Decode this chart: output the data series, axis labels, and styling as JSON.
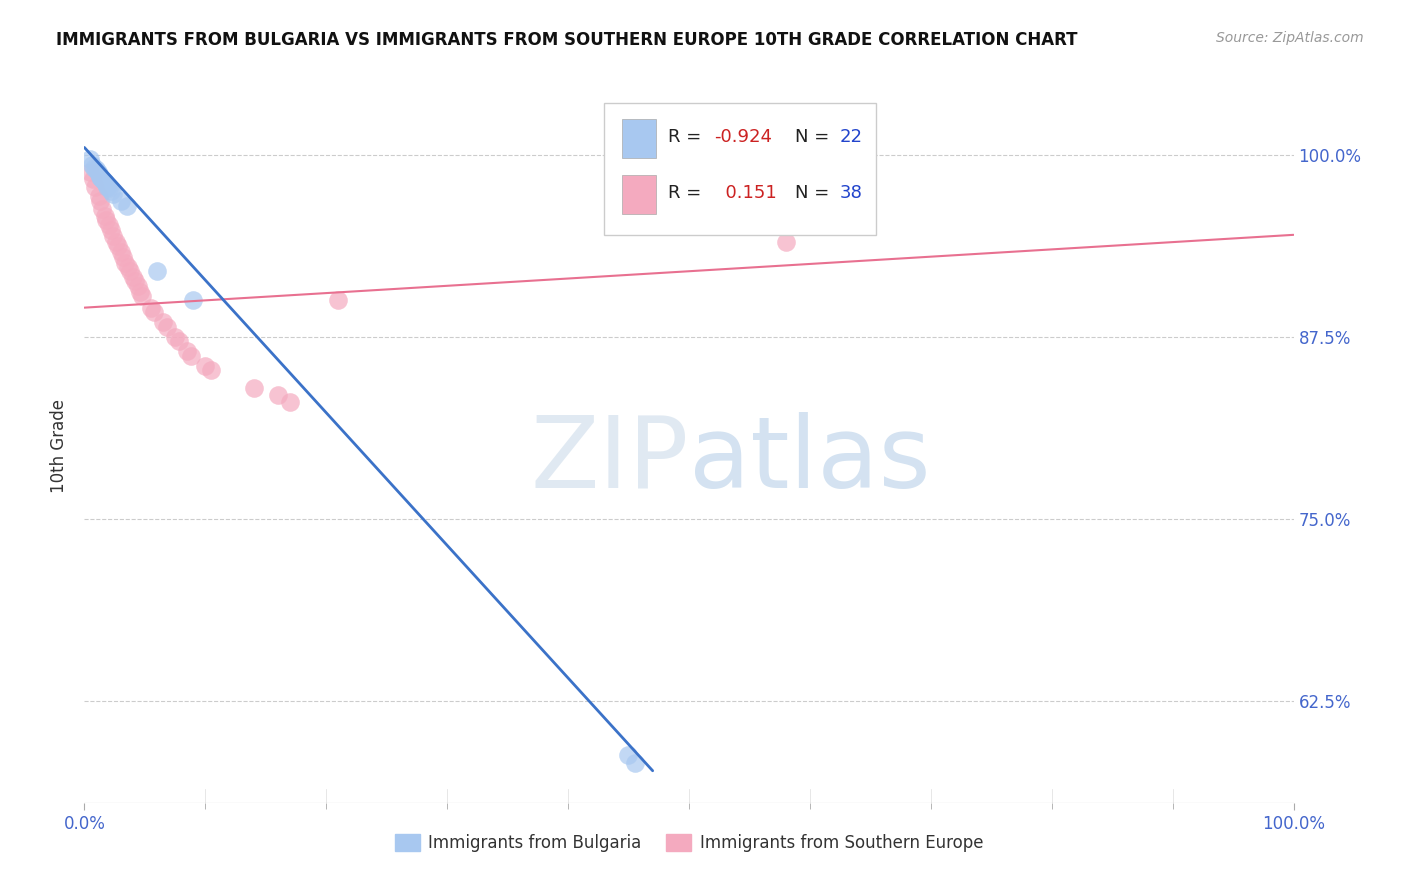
{
  "title": "IMMIGRANTS FROM BULGARIA VS IMMIGRANTS FROM SOUTHERN EUROPE 10TH GRADE CORRELATION CHART",
  "source": "Source: ZipAtlas.com",
  "ylabel": "10th Grade",
  "y_ticks": [
    0.625,
    0.75,
    0.875,
    1.0
  ],
  "y_tick_labels": [
    "62.5%",
    "75.0%",
    "87.5%",
    "100.0%"
  ],
  "xlim": [
    0.0,
    1.0
  ],
  "ylim": [
    0.555,
    1.045
  ],
  "legend_blue_r": "-0.924",
  "legend_blue_n": "22",
  "legend_pink_r": "0.151",
  "legend_pink_n": "38",
  "blue_color": "#A8C8F0",
  "pink_color": "#F4AABF",
  "blue_line_color": "#3B72C8",
  "pink_line_color": "#E87090",
  "blue_scatter": [
    [
      0.005,
      0.997
    ],
    [
      0.006,
      0.993
    ],
    [
      0.008,
      0.991
    ],
    [
      0.01,
      0.99
    ],
    [
      0.011,
      0.988
    ],
    [
      0.012,
      0.987
    ],
    [
      0.013,
      0.985
    ],
    [
      0.014,
      0.984
    ],
    [
      0.015,
      0.983
    ],
    [
      0.016,
      0.982
    ],
    [
      0.017,
      0.981
    ],
    [
      0.018,
      0.98
    ],
    [
      0.019,
      0.978
    ],
    [
      0.02,
      0.977
    ],
    [
      0.022,
      0.975
    ],
    [
      0.024,
      0.973
    ],
    [
      0.03,
      0.968
    ],
    [
      0.035,
      0.965
    ],
    [
      0.06,
      0.92
    ],
    [
      0.09,
      0.9
    ],
    [
      0.45,
      0.588
    ],
    [
      0.455,
      0.582
    ]
  ],
  "pink_scatter": [
    [
      0.005,
      0.988
    ],
    [
      0.007,
      0.983
    ],
    [
      0.009,
      0.978
    ],
    [
      0.012,
      0.972
    ],
    [
      0.013,
      0.968
    ],
    [
      0.015,
      0.963
    ],
    [
      0.017,
      0.958
    ],
    [
      0.018,
      0.955
    ],
    [
      0.02,
      0.952
    ],
    [
      0.022,
      0.948
    ],
    [
      0.024,
      0.944
    ],
    [
      0.026,
      0.94
    ],
    [
      0.028,
      0.937
    ],
    [
      0.03,
      0.933
    ],
    [
      0.032,
      0.93
    ],
    [
      0.034,
      0.926
    ],
    [
      0.036,
      0.923
    ],
    [
      0.038,
      0.92
    ],
    [
      0.04,
      0.916
    ],
    [
      0.042,
      0.913
    ],
    [
      0.044,
      0.91
    ],
    [
      0.046,
      0.906
    ],
    [
      0.048,
      0.903
    ],
    [
      0.055,
      0.895
    ],
    [
      0.058,
      0.892
    ],
    [
      0.065,
      0.885
    ],
    [
      0.068,
      0.882
    ],
    [
      0.075,
      0.875
    ],
    [
      0.078,
      0.872
    ],
    [
      0.085,
      0.865
    ],
    [
      0.088,
      0.862
    ],
    [
      0.1,
      0.855
    ],
    [
      0.105,
      0.852
    ],
    [
      0.14,
      0.84
    ],
    [
      0.16,
      0.835
    ],
    [
      0.17,
      0.83
    ],
    [
      0.21,
      0.9
    ],
    [
      0.58,
      0.94
    ]
  ],
  "blue_line_x": [
    0.0,
    0.47
  ],
  "blue_line_y": [
    1.005,
    0.577
  ],
  "pink_line_x": [
    0.0,
    1.0
  ],
  "pink_line_y": [
    0.895,
    0.945
  ],
  "watermark_zip": "ZIP",
  "watermark_atlas": "atlas",
  "background_color": "#FFFFFF",
  "grid_color": "#CCCCCC",
  "title_color": "#111111",
  "source_color": "#999999",
  "tick_color": "#4466CC",
  "ylabel_color": "#333333"
}
